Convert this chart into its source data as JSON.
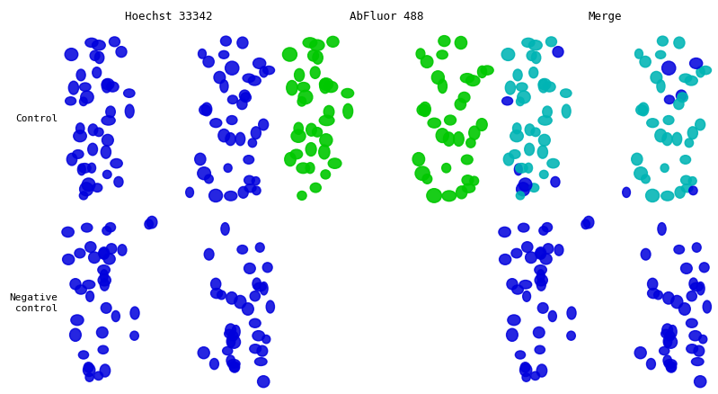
{
  "title_labels": [
    "Hoechst 33342",
    "AbFluor 488",
    "Merge"
  ],
  "row_labels": [
    "Control",
    "Negative\ncontrol"
  ],
  "background_color": "#ffffff",
  "panel_bg": "#000000",
  "title_fontsize": 9,
  "row_label_fontsize": 8,
  "fig_width": 7.99,
  "fig_height": 4.38,
  "seed": 42,
  "blue_color": [
    0,
    0,
    220
  ],
  "green_color": [
    0,
    200,
    0
  ],
  "cyan_color": [
    0,
    180,
    180
  ]
}
